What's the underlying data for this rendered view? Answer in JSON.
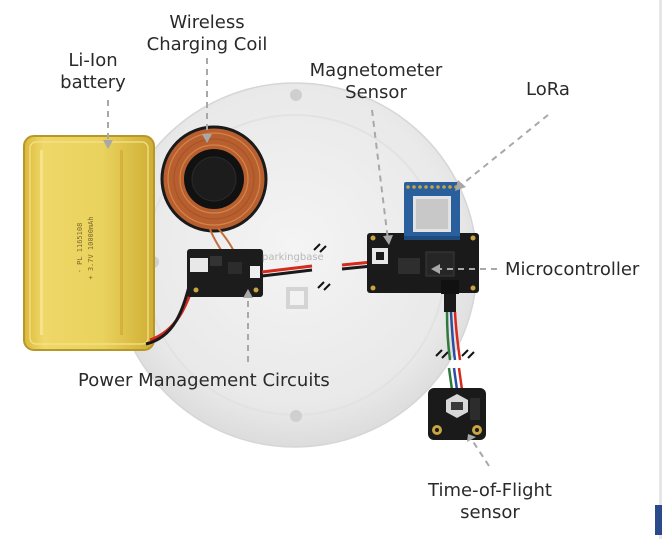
{
  "labels": {
    "battery": [
      "Li-Ion",
      "battery"
    ],
    "coil": [
      "Wireless",
      "Charging Coil"
    ],
    "magnetometer": [
      "Magnetometer",
      "Sensor"
    ],
    "lora": "LoRa",
    "microcontroller": "Microcontroller",
    "power": "Power Management Circuits",
    "tof": [
      "Time-of-Flight",
      "sensor"
    ]
  },
  "markings": {
    "battery_line1": "- PL 1165108",
    "battery_line2": "+ 3.7V 10000mAh",
    "board_brand": "parkingbase"
  },
  "colors": {
    "label_text": "#2a2a2a",
    "leader_line": "#a8a8a8",
    "battery_body": "#e8cf56",
    "pcb_dark": "#1c1c1c",
    "lora_module": "#2a5f9e",
    "coil_copper": "#c0703a",
    "wire_red": "#d62a1e",
    "wire_black": "#1a1a1a"
  }
}
